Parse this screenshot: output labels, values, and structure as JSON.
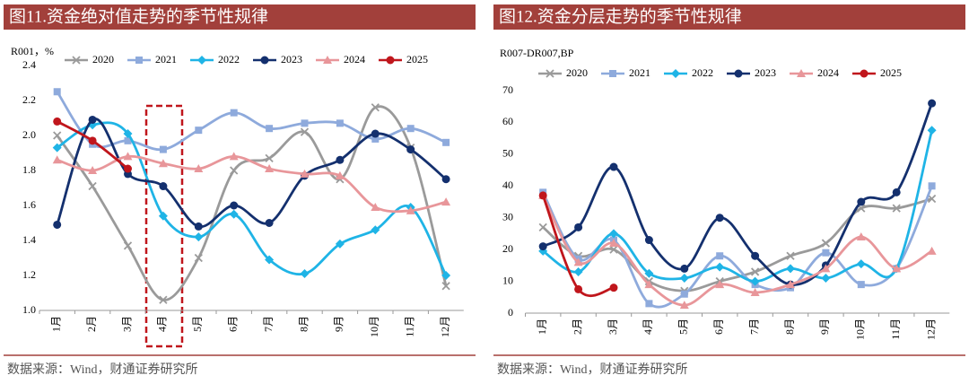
{
  "chart_data": [
    {
      "type": "line",
      "title": "图11.资金绝对值走势的季节性规律",
      "y_label": "R001，%",
      "source": "数据来源：Wind，财通证券研究所",
      "categories": [
        "1月",
        "2月",
        "3月",
        "4月",
        "5月",
        "6月",
        "7月",
        "8月",
        "9月",
        "10月",
        "11月",
        "12月"
      ],
      "ylim": [
        1.0,
        2.4
      ],
      "yticks": [
        {
          "value": 1.0,
          "label": "1.0"
        },
        {
          "value": 1.2,
          "label": "1.2"
        },
        {
          "value": 1.4,
          "label": "1.4"
        },
        {
          "value": 1.6,
          "label": "1.6"
        },
        {
          "value": 1.8,
          "label": "1.8"
        },
        {
          "value": 2.0,
          "label": "2.0"
        },
        {
          "value": 2.2,
          "label": "2.2"
        },
        {
          "value": 2.4,
          "label": "2.4"
        }
      ],
      "series": [
        {
          "name": "2020",
          "color": "#9a9a9a",
          "marker": "cross",
          "values": [
            2.0,
            1.71,
            1.37,
            1.06,
            1.3,
            1.8,
            1.87,
            2.02,
            1.75,
            2.16,
            1.93,
            1.14
          ]
        },
        {
          "name": "2021",
          "color": "#8eaadc",
          "marker": "square",
          "values": [
            2.25,
            1.95,
            1.97,
            1.92,
            2.03,
            2.13,
            2.04,
            2.07,
            2.07,
            1.98,
            2.04,
            1.96
          ]
        },
        {
          "name": "2022",
          "color": "#1fb4e6",
          "marker": "diamond",
          "values": [
            1.93,
            2.06,
            2.01,
            1.54,
            1.42,
            1.55,
            1.29,
            1.21,
            1.38,
            1.46,
            1.59,
            1.2
          ]
        },
        {
          "name": "2023",
          "color": "#14306e",
          "marker": "circle",
          "values": [
            1.49,
            2.09,
            1.78,
            1.71,
            1.48,
            1.6,
            1.5,
            1.77,
            1.86,
            2.01,
            1.92,
            1.75
          ]
        },
        {
          "name": "2024",
          "color": "#e8969a",
          "marker": "triangle",
          "values": [
            1.86,
            1.8,
            1.88,
            1.84,
            1.81,
            1.88,
            1.81,
            1.78,
            1.77,
            1.59,
            1.57,
            1.62
          ]
        },
        {
          "name": "2025",
          "color": "#c0161c",
          "marker": "circle",
          "values": [
            2.08,
            1.97,
            1.81,
            null,
            null,
            null,
            null,
            null,
            null,
            null,
            null,
            null
          ]
        }
      ]
    },
    {
      "type": "line",
      "title": "图12.资金分层走势的季节性规律",
      "y_label": "R007-DR007,BP",
      "source": "数据来源：Wind，财通证券研究所",
      "categories": [
        "1月",
        "2月",
        "3月",
        "4月",
        "5月",
        "6月",
        "7月",
        "8月",
        "9月",
        "10月",
        "11月",
        "12月"
      ],
      "ylim": [
        0,
        70
      ],
      "yticks": [
        0,
        10,
        20,
        30,
        40,
        50,
        60,
        70
      ],
      "series": [
        {
          "name": "2020",
          "color": "#9a9a9a",
          "marker": "cross",
          "values": [
            27,
            18,
            20,
            10,
            7,
            10,
            13,
            18,
            22,
            33,
            33,
            36
          ]
        },
        {
          "name": "2021",
          "color": "#8eaadc",
          "marker": "square",
          "values": [
            38,
            17,
            23,
            3,
            6,
            18,
            9,
            8,
            19,
            9,
            14,
            40
          ]
        },
        {
          "name": "2022",
          "color": "#1fb4e6",
          "marker": "diamond",
          "values": [
            19.5,
            13,
            25,
            12.5,
            11,
            14.5,
            10,
            14,
            11,
            15.5,
            14,
            57.5
          ]
        },
        {
          "name": "2023",
          "color": "#14306e",
          "marker": "circle",
          "values": [
            21,
            27,
            46,
            23,
            14,
            30,
            18,
            9,
            15,
            35,
            38,
            66
          ]
        },
        {
          "name": "2024",
          "color": "#e8969a",
          "marker": "triangle",
          "values": [
            37,
            16,
            22,
            9,
            2.5,
            9,
            6.5,
            9,
            14,
            24,
            14,
            19.5
          ]
        },
        {
          "name": "2025",
          "color": "#c0161c",
          "marker": "circle",
          "values": [
            37,
            7.5,
            8,
            null,
            null,
            null,
            null,
            null,
            null,
            null,
            null,
            null
          ]
        }
      ]
    }
  ]
}
